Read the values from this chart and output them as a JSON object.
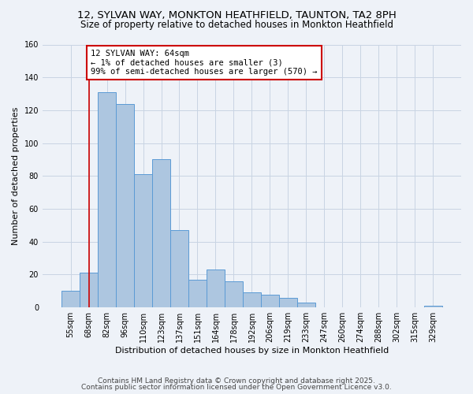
{
  "title_line1": "12, SYLVAN WAY, MONKTON HEATHFIELD, TAUNTON, TA2 8PH",
  "title_line2": "Size of property relative to detached houses in Monkton Heathfield",
  "xlabel": "Distribution of detached houses by size in Monkton Heathfield",
  "ylabel": "Number of detached properties",
  "bar_labels": [
    "55sqm",
    "68sqm",
    "82sqm",
    "96sqm",
    "110sqm",
    "123sqm",
    "137sqm",
    "151sqm",
    "164sqm",
    "178sqm",
    "192sqm",
    "206sqm",
    "219sqm",
    "233sqm",
    "247sqm",
    "260sqm",
    "274sqm",
    "288sqm",
    "302sqm",
    "315sqm",
    "329sqm"
  ],
  "bar_values": [
    10,
    21,
    131,
    124,
    81,
    90,
    47,
    17,
    23,
    16,
    9,
    8,
    6,
    3,
    0,
    0,
    0,
    0,
    0,
    0,
    1
  ],
  "bar_color": "#adc6e0",
  "bar_edge_color": "#5b9bd5",
  "vline_x": 1,
  "vline_color": "#cc0000",
  "annotation_text": "12 SYLVAN WAY: 64sqm\n← 1% of detached houses are smaller (3)\n99% of semi-detached houses are larger (570) →",
  "annotation_box_color": "#ffffff",
  "annotation_box_edge_color": "#cc0000",
  "ylim": [
    0,
    160
  ],
  "yticks": [
    0,
    20,
    40,
    60,
    80,
    100,
    120,
    140,
    160
  ],
  "grid_color": "#c8d4e3",
  "bg_color": "#eef2f8",
  "footer_line1": "Contains HM Land Registry data © Crown copyright and database right 2025.",
  "footer_line2": "Contains public sector information licensed under the Open Government Licence v3.0.",
  "title_fontsize": 9.5,
  "subtitle_fontsize": 8.5,
  "axis_label_fontsize": 8,
  "tick_fontsize": 7,
  "annotation_fontsize": 7.5,
  "footer_fontsize": 6.5
}
